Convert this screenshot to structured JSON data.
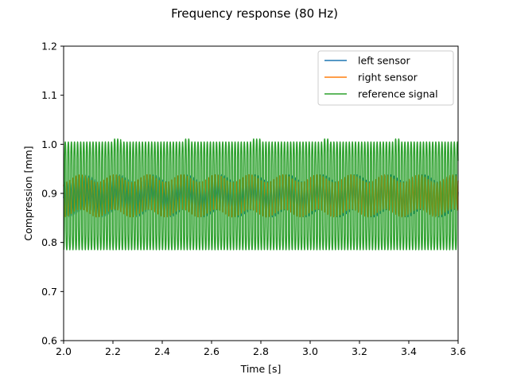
{
  "chart_data": {
    "type": "line",
    "title": "Frequency response (80 Hz)",
    "xlabel": "Time [s]",
    "ylabel": "Compression [mm]",
    "xlim": [
      2.0,
      3.6
    ],
    "ylim": [
      0.6,
      1.2
    ],
    "xticks": [
      2.0,
      2.2,
      2.4,
      2.6,
      2.8,
      3.0,
      3.2,
      3.4,
      3.6
    ],
    "xtick_labels": [
      "2.0",
      "2.2",
      "2.4",
      "2.6",
      "2.8",
      "3.0",
      "3.2",
      "3.4",
      "3.6"
    ],
    "yticks": [
      0.6,
      0.7,
      0.8,
      0.9,
      1.0,
      1.1,
      1.2
    ],
    "ytick_labels": [
      "0.6",
      "0.7",
      "0.8",
      "0.9",
      "1.0",
      "1.1",
      "1.2"
    ],
    "grid": false,
    "legend_position": "upper-right",
    "frequency_hz": 80,
    "series": [
      {
        "name": "left sensor",
        "color": "#1f77b4",
        "mean": 0.895,
        "amplitude": 0.035,
        "ripple": 0.008
      },
      {
        "name": "right sensor",
        "color": "#ff7f0e",
        "mean": 0.895,
        "amplitude": 0.035,
        "ripple": 0.008
      },
      {
        "name": "reference signal",
        "color": "#2ca02c",
        "mean": 0.895,
        "amplitude": 0.11,
        "peak_max": 1.012,
        "trough_min": 0.786
      }
    ]
  }
}
